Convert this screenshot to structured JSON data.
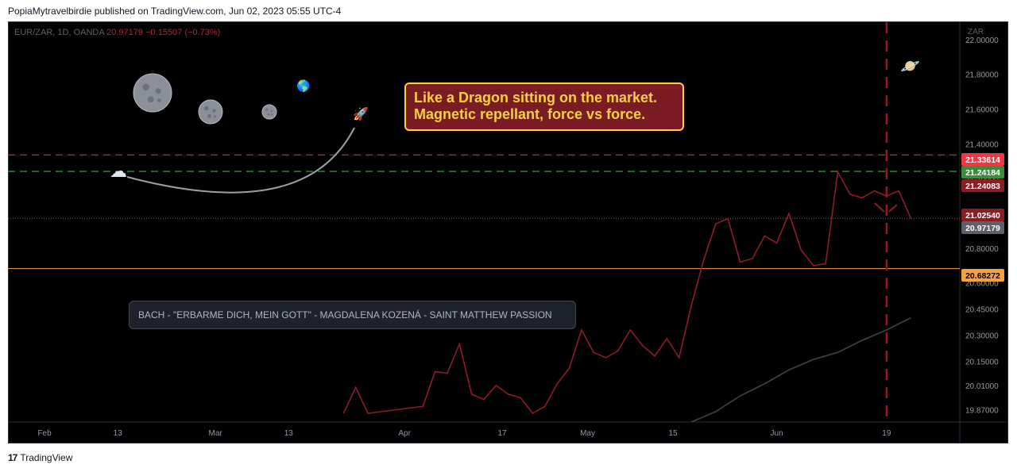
{
  "header": {
    "published_line": "PopiaMytravelbirdie published on TradingView.com, Jun 02, 2023 05:55 UTC-4"
  },
  "legend": {
    "symbol": "EUR/ZAR, 1D, OANDA",
    "price": "20.97179",
    "change": "−0.15507 (−0.73%)"
  },
  "axis": {
    "currency": "ZAR"
  },
  "footer": {
    "brand": "TradingView",
    "logo_glyph": "17"
  },
  "annotations": {
    "callout_line1": "Like a Dragon sitting on the market.",
    "callout_line2": "Magnetic repellant, force vs force.",
    "song": "BACH - \"ERBARME DICH, MEIN GOTT\" - MAGDALENA KOZENÁ - SAINT MATTHEW PASSION",
    "rocket_icon": "🚀",
    "globe_icon": "🌎",
    "planet_icon": "🪐",
    "cloud_icon": "☁",
    "moon_icon": "moon"
  },
  "colors": {
    "price_line": "#8e1c24",
    "ma_line": "#3a3d46",
    "red_dashed": "#c62430",
    "green_dashed": "#3d8b3d",
    "orange_level": "#f7a256",
    "time_marker": "#8e1c24",
    "callout_bg": "#7b1c24",
    "callout_text": "#f6d145"
  },
  "chart_data": {
    "type": "line",
    "symbol": "EUR/ZAR",
    "interval": "1D",
    "ylim": [
      19.8,
      22.1
    ],
    "y_ticks": [
      "22.00000",
      "21.80000",
      "21.60000",
      "21.40000",
      "21.20000",
      "20.80000",
      "20.60000",
      "20.45000",
      "20.30000",
      "20.15000",
      "20.01000",
      "19.87000"
    ],
    "y_tick_values": [
      22.0,
      21.8,
      21.6,
      21.4,
      21.2,
      20.8,
      20.6,
      20.45,
      20.3,
      20.15,
      20.01,
      19.87
    ],
    "x_ticks": [
      "Feb",
      "13",
      "Mar",
      "13",
      "Apr",
      "17",
      "May",
      "15",
      "Jun",
      "19"
    ],
    "x_tick_dates": [
      "2023-02-01",
      "2023-02-13",
      "2023-03-01",
      "2023-03-13",
      "2023-04-01",
      "2023-04-17",
      "2023-05-01",
      "2023-05-15",
      "2023-06-01",
      "2023-06-19"
    ],
    "xlim": [
      "2023-01-26",
      "2023-07-01"
    ],
    "series": [
      {
        "values": [
          [
            "2023-03-22",
            19.85
          ],
          [
            "2023-03-24",
            20.0
          ],
          [
            "2023-03-26",
            19.85
          ],
          [
            "2023-04-04",
            19.89
          ],
          [
            "2023-04-06",
            20.09
          ],
          [
            "2023-04-08",
            20.08
          ],
          [
            "2023-04-10",
            20.25
          ],
          [
            "2023-04-12",
            19.96
          ],
          [
            "2023-04-14",
            19.93
          ],
          [
            "2023-04-16",
            20.01
          ],
          [
            "2023-04-18",
            19.96
          ],
          [
            "2023-04-20",
            19.94
          ],
          [
            "2023-04-22",
            19.85
          ],
          [
            "2023-04-24",
            19.89
          ],
          [
            "2023-04-26",
            20.02
          ],
          [
            "2023-04-28",
            20.11
          ],
          [
            "2023-04-30",
            20.33
          ],
          [
            "2023-05-02",
            20.2
          ],
          [
            "2023-05-04",
            20.17
          ],
          [
            "2023-05-06",
            20.21
          ],
          [
            "2023-05-08",
            20.33
          ],
          [
            "2023-05-10",
            20.24
          ],
          [
            "2023-05-12",
            20.18
          ],
          [
            "2023-05-14",
            20.28
          ],
          [
            "2023-05-16",
            20.17
          ],
          [
            "2023-05-18",
            20.47
          ],
          [
            "2023-05-20",
            20.73
          ],
          [
            "2023-05-22",
            20.94
          ],
          [
            "2023-05-24",
            20.97
          ],
          [
            "2023-05-26",
            20.72
          ],
          [
            "2023-05-28",
            20.74
          ],
          [
            "2023-05-30",
            20.87
          ],
          [
            "2023-06-01",
            20.83
          ],
          [
            "2023-06-03",
            21.0
          ],
          [
            "2023-06-05",
            20.79
          ],
          [
            "2023-06-07",
            20.7
          ],
          [
            "2023-06-09",
            20.71
          ],
          [
            "2023-06-11",
            21.24
          ],
          [
            "2023-06-13",
            21.11
          ],
          [
            "2023-06-15",
            21.09
          ],
          [
            "2023-06-17",
            21.13
          ],
          [
            "2023-06-19",
            21.1
          ],
          [
            "2023-06-21",
            21.13
          ],
          [
            "2023-06-23",
            20.97
          ]
        ]
      },
      {
        "values": [
          [
            "2023-05-18",
            19.8
          ],
          [
            "2023-05-22",
            19.86
          ],
          [
            "2023-05-26",
            19.95
          ],
          [
            "2023-05-30",
            20.02
          ],
          [
            "2023-06-03",
            20.1
          ],
          [
            "2023-06-07",
            20.16
          ],
          [
            "2023-06-11",
            20.2
          ],
          [
            "2023-06-15",
            20.27
          ],
          [
            "2023-06-19",
            20.33
          ],
          [
            "2023-06-23",
            20.4
          ]
        ]
      }
    ],
    "price_labels": [
      {
        "value": 21.33614,
        "text": "21.33614",
        "color": "#f23645",
        "dashed": true
      },
      {
        "value": 21.24184,
        "text": "21.24184",
        "color": "#3d8b3d",
        "dashed": true
      },
      {
        "value": 21.24083,
        "text": "21.24083",
        "color": "#8e1c24"
      },
      {
        "value": 21.0254,
        "text": "21.02540",
        "color": "#8e1c24"
      },
      {
        "value": 20.97179,
        "text": "20.97179",
        "color": "#5d606b"
      },
      {
        "value": 20.68272,
        "text": "20.68272",
        "color": "#f7a23b",
        "text_color": "#000000"
      }
    ],
    "vertical_marker_date": "2023-06-19",
    "grid": false
  }
}
